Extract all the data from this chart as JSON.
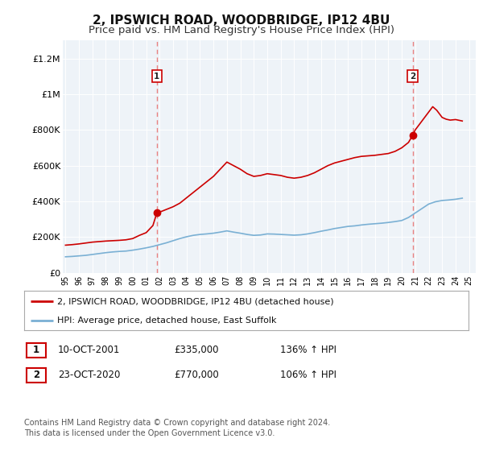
{
  "title": "2, IPSWICH ROAD, WOODBRIDGE, IP12 4BU",
  "subtitle": "Price paid vs. HM Land Registry's House Price Index (HPI)",
  "title_fontsize": 11,
  "subtitle_fontsize": 9.5,
  "ylim": [
    0,
    1300000
  ],
  "yticks": [
    0,
    200000,
    400000,
    600000,
    800000,
    1000000,
    1200000
  ],
  "ytick_labels": [
    "£0",
    "£200K",
    "£400K",
    "£600K",
    "£800K",
    "£1M",
    "£1.2M"
  ],
  "xlim_start": 1994.8,
  "xlim_end": 2025.5,
  "red_line_color": "#cc0000",
  "blue_line_color": "#7ab0d4",
  "vline_color": "#e88080",
  "legend_label_red": "2, IPSWICH ROAD, WOODBRIDGE, IP12 4BU (detached house)",
  "legend_label_blue": "HPI: Average price, detached house, East Suffolk",
  "sale1_year": 2001.79,
  "sale1_price": 335000,
  "sale1_label": "1",
  "sale2_year": 2020.81,
  "sale2_price": 770000,
  "sale2_label": "2",
  "footer_line1": "Contains HM Land Registry data © Crown copyright and database right 2024.",
  "footer_line2": "This data is licensed under the Open Government Licence v3.0.",
  "table_row1": [
    "1",
    "10-OCT-2001",
    "£335,000",
    "136% ↑ HPI"
  ],
  "table_row2": [
    "2",
    "23-OCT-2020",
    "£770,000",
    "106% ↑ HPI"
  ],
  "background_color": "#ffffff",
  "plot_bg_color": "#eef3f8",
  "red_series": [
    [
      1995.0,
      155000
    ],
    [
      1995.5,
      158000
    ],
    [
      1996.0,
      162000
    ],
    [
      1996.5,
      167000
    ],
    [
      1997.0,
      172000
    ],
    [
      1997.5,
      175000
    ],
    [
      1998.0,
      178000
    ],
    [
      1998.5,
      180000
    ],
    [
      1999.0,
      182000
    ],
    [
      1999.5,
      185000
    ],
    [
      2000.0,
      192000
    ],
    [
      2000.5,
      210000
    ],
    [
      2001.0,
      225000
    ],
    [
      2001.5,
      265000
    ],
    [
      2001.79,
      335000
    ],
    [
      2002.0,
      340000
    ],
    [
      2002.5,
      355000
    ],
    [
      2003.0,
      370000
    ],
    [
      2003.5,
      390000
    ],
    [
      2004.0,
      420000
    ],
    [
      2004.5,
      450000
    ],
    [
      2005.0,
      480000
    ],
    [
      2005.5,
      510000
    ],
    [
      2006.0,
      540000
    ],
    [
      2006.5,
      580000
    ],
    [
      2007.0,
      620000
    ],
    [
      2007.5,
      600000
    ],
    [
      2008.0,
      580000
    ],
    [
      2008.5,
      555000
    ],
    [
      2009.0,
      540000
    ],
    [
      2009.5,
      545000
    ],
    [
      2010.0,
      555000
    ],
    [
      2010.5,
      550000
    ],
    [
      2011.0,
      545000
    ],
    [
      2011.5,
      535000
    ],
    [
      2012.0,
      530000
    ],
    [
      2012.5,
      535000
    ],
    [
      2013.0,
      545000
    ],
    [
      2013.5,
      560000
    ],
    [
      2014.0,
      580000
    ],
    [
      2014.5,
      600000
    ],
    [
      2015.0,
      615000
    ],
    [
      2015.5,
      625000
    ],
    [
      2016.0,
      635000
    ],
    [
      2016.5,
      645000
    ],
    [
      2017.0,
      652000
    ],
    [
      2017.5,
      655000
    ],
    [
      2018.0,
      658000
    ],
    [
      2018.5,
      663000
    ],
    [
      2019.0,
      668000
    ],
    [
      2019.5,
      680000
    ],
    [
      2020.0,
      700000
    ],
    [
      2020.5,
      730000
    ],
    [
      2020.81,
      770000
    ],
    [
      2021.0,
      800000
    ],
    [
      2021.5,
      850000
    ],
    [
      2022.0,
      900000
    ],
    [
      2022.3,
      930000
    ],
    [
      2022.6,
      910000
    ],
    [
      2022.9,
      880000
    ],
    [
      2023.0,
      870000
    ],
    [
      2023.3,
      860000
    ],
    [
      2023.6,
      855000
    ],
    [
      2024.0,
      858000
    ],
    [
      2024.5,
      850000
    ]
  ],
  "blue_series": [
    [
      1995.0,
      90000
    ],
    [
      1995.5,
      92000
    ],
    [
      1996.0,
      95000
    ],
    [
      1996.5,
      98000
    ],
    [
      1997.0,
      103000
    ],
    [
      1997.5,
      108000
    ],
    [
      1998.0,
      113000
    ],
    [
      1998.5,
      117000
    ],
    [
      1999.0,
      120000
    ],
    [
      1999.5,
      122000
    ],
    [
      2000.0,
      127000
    ],
    [
      2000.5,
      133000
    ],
    [
      2001.0,
      140000
    ],
    [
      2001.5,
      148000
    ],
    [
      2002.0,
      158000
    ],
    [
      2002.5,
      168000
    ],
    [
      2003.0,
      180000
    ],
    [
      2003.5,
      192000
    ],
    [
      2004.0,
      202000
    ],
    [
      2004.5,
      210000
    ],
    [
      2005.0,
      215000
    ],
    [
      2005.5,
      218000
    ],
    [
      2006.0,
      222000
    ],
    [
      2006.5,
      228000
    ],
    [
      2007.0,
      235000
    ],
    [
      2007.5,
      228000
    ],
    [
      2008.0,
      222000
    ],
    [
      2008.5,
      215000
    ],
    [
      2009.0,
      210000
    ],
    [
      2009.5,
      212000
    ],
    [
      2010.0,
      218000
    ],
    [
      2010.5,
      217000
    ],
    [
      2011.0,
      215000
    ],
    [
      2011.5,
      213000
    ],
    [
      2012.0,
      211000
    ],
    [
      2012.5,
      213000
    ],
    [
      2013.0,
      218000
    ],
    [
      2013.5,
      225000
    ],
    [
      2014.0,
      233000
    ],
    [
      2014.5,
      240000
    ],
    [
      2015.0,
      248000
    ],
    [
      2015.5,
      254000
    ],
    [
      2016.0,
      260000
    ],
    [
      2016.5,
      263000
    ],
    [
      2017.0,
      268000
    ],
    [
      2017.5,
      272000
    ],
    [
      2018.0,
      275000
    ],
    [
      2018.5,
      278000
    ],
    [
      2019.0,
      282000
    ],
    [
      2019.5,
      287000
    ],
    [
      2020.0,
      293000
    ],
    [
      2020.5,
      310000
    ],
    [
      2021.0,
      335000
    ],
    [
      2021.5,
      360000
    ],
    [
      2022.0,
      385000
    ],
    [
      2022.5,
      398000
    ],
    [
      2023.0,
      405000
    ],
    [
      2023.5,
      408000
    ],
    [
      2024.0,
      412000
    ],
    [
      2024.5,
      418000
    ]
  ]
}
